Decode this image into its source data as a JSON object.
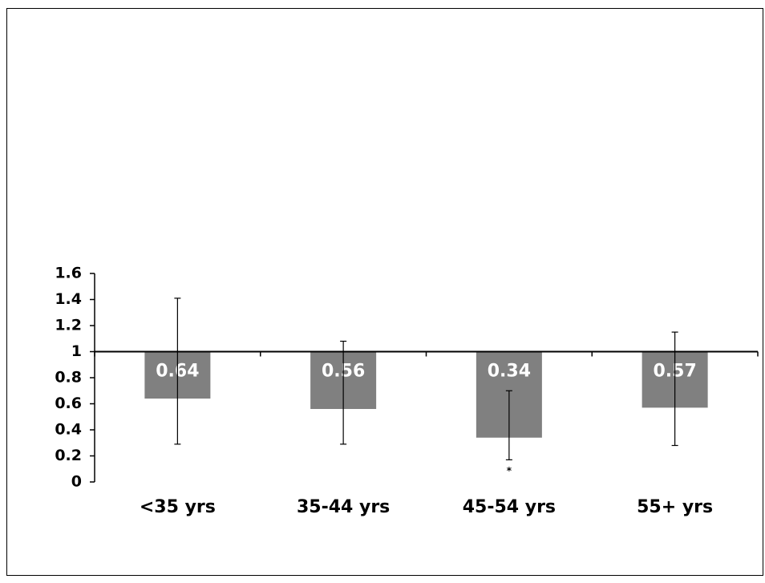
{
  "chart_data": {
    "type": "bar",
    "categories": [
      "<35 yrs",
      "35-44 yrs",
      "45-54 yrs",
      "55+ yrs"
    ],
    "values": [
      0.64,
      0.56,
      0.34,
      0.57
    ],
    "ci_lower": [
      0.29,
      0.29,
      0.17,
      0.28
    ],
    "ci_upper": [
      1.41,
      1.08,
      0.7,
      1.15
    ],
    "color": "#808080",
    "baseline": 1,
    "ylim": [
      0,
      1.6
    ],
    "yticks": [
      0,
      0.2,
      0.4,
      0.6,
      0.8,
      1,
      1.2,
      1.4,
      1.6
    ],
    "annotations": [
      {
        "category_index": 2,
        "text": "*"
      }
    ],
    "grid": false
  }
}
